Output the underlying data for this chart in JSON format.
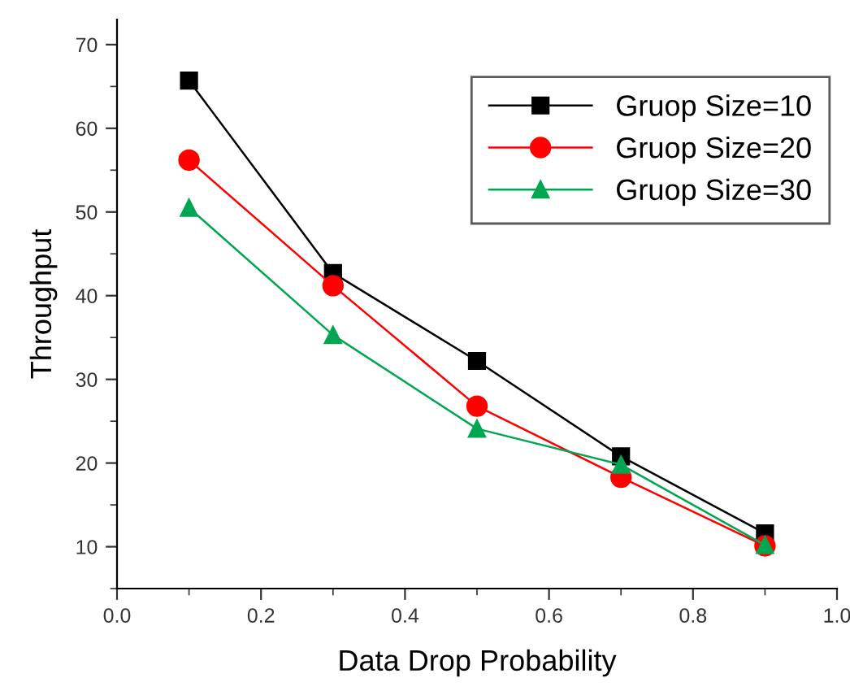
{
  "chart_data": {
    "type": "line",
    "xlabel": "Data Drop Probability",
    "ylabel": "Throughput",
    "x": [
      0.1,
      0.3,
      0.5,
      0.7,
      0.9
    ],
    "series": [
      {
        "name": "Gruop Size=10",
        "color": "#000000",
        "marker": "square",
        "values": [
          65.7,
          42.7,
          32.2,
          20.8,
          11.6
        ]
      },
      {
        "name": "Gruop Size=20",
        "color": "#ff0000",
        "marker": "circle",
        "values": [
          56.2,
          41.2,
          26.8,
          18.3,
          10.1
        ]
      },
      {
        "name": "Gruop Size=30",
        "color": "#00a651",
        "marker": "triangle",
        "values": [
          50.5,
          35.3,
          24.1,
          19.8,
          10.2
        ]
      }
    ],
    "xlim": [
      0.0,
      1.0
    ],
    "xticks": [
      {
        "value": 0.0,
        "label": "0.0"
      },
      {
        "value": 0.2,
        "label": "0.2"
      },
      {
        "value": 0.4,
        "label": "0.4"
      },
      {
        "value": 0.6,
        "label": "0.6"
      },
      {
        "value": 0.8,
        "label": "0.8"
      },
      {
        "value": 1.0,
        "label": "1.0"
      }
    ],
    "ylim": [
      5,
      73
    ],
    "yticks": [
      10,
      20,
      30,
      40,
      50,
      60,
      70
    ],
    "grid": false,
    "legend": "top right",
    "line_style": "solid"
  }
}
